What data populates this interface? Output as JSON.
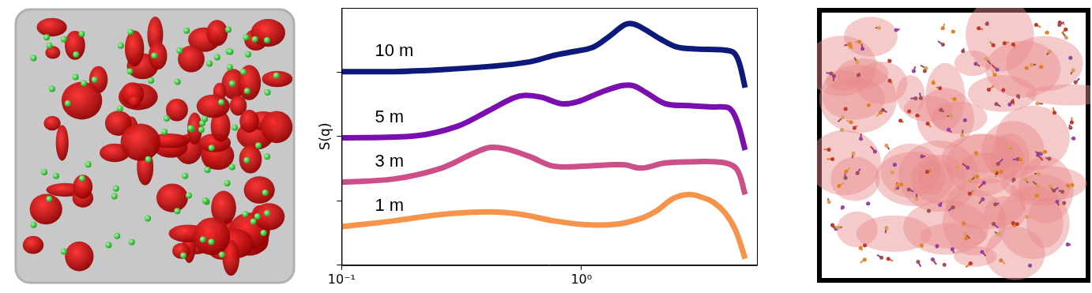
{
  "chart_data": {
    "type": "line",
    "y_label": "S(q)",
    "log": "x",
    "grid": false,
    "tick_labels": "x",
    "line_style": "solid",
    "xlim": [
      0.1,
      5.4
    ],
    "xticks": [
      {
        "value": 0.1,
        "label": "10⁻¹"
      },
      {
        "value": 1,
        "label": "10⁰"
      }
    ],
    "ylim": [
      0,
      4
    ],
    "yticks": [
      0,
      1,
      2,
      3
    ],
    "series": [
      {
        "name": "10 m",
        "color": "#0d1a7a",
        "x": [
          0.1,
          0.165,
          0.261,
          0.414,
          0.607,
          0.765,
          0.891,
          1.12,
          1.31,
          1.52,
          1.65,
          1.85,
          2.15,
          2.51,
          3.04,
          3.83,
          4.3,
          4.54,
          4.82
        ],
        "values": [
          3.01,
          3.01,
          3.04,
          3.09,
          3.16,
          3.26,
          3.31,
          3.39,
          3.56,
          3.74,
          3.75,
          3.66,
          3.51,
          3.39,
          3.36,
          3.35,
          3.31,
          3.16,
          2.76
        ]
      },
      {
        "name": "5 m",
        "color": "#7a0fb0",
        "x": [
          0.1,
          0.203,
          0.304,
          0.414,
          0.521,
          0.584,
          0.681,
          0.825,
          0.962,
          1.21,
          1.47,
          1.65,
          1.85,
          2.24,
          2.82,
          3.55,
          4.14,
          4.47,
          4.82
        ],
        "values": [
          1.98,
          2.01,
          2.16,
          2.41,
          2.6,
          2.64,
          2.61,
          2.51,
          2.54,
          2.69,
          2.79,
          2.79,
          2.69,
          2.51,
          2.48,
          2.46,
          2.44,
          2.23,
          1.79
        ]
      },
      {
        "name": "3 m",
        "color": "#cc4f8a",
        "x": [
          0.1,
          0.165,
          0.261,
          0.355,
          0.414,
          0.483,
          0.607,
          0.765,
          1.04,
          1.31,
          1.52,
          1.78,
          2.24,
          3.04,
          3.98,
          4.47,
          4.82
        ],
        "values": [
          1.29,
          1.34,
          1.51,
          1.74,
          1.83,
          1.81,
          1.69,
          1.54,
          1.54,
          1.56,
          1.56,
          1.51,
          1.59,
          1.61,
          1.59,
          1.48,
          1.1
        ]
      },
      {
        "name": "1 m",
        "color": "#f5944a",
        "x": [
          0.1,
          0.165,
          0.261,
          0.414,
          0.562,
          0.765,
          1.04,
          1.41,
          1.78,
          2.07,
          2.42,
          2.82,
          3.16,
          3.55,
          3.98,
          4.4,
          4.82
        ],
        "values": [
          0.6,
          0.69,
          0.79,
          0.83,
          0.79,
          0.69,
          0.63,
          0.64,
          0.73,
          0.85,
          1.04,
          1.1,
          1.06,
          0.98,
          0.81,
          0.54,
          0.1
        ]
      }
    ]
  }
}
